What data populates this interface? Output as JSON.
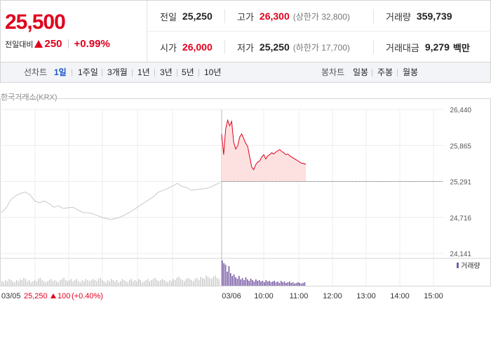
{
  "summary": {
    "price": "25,500",
    "change_label": "전일대비",
    "change_value": "250",
    "change_pct": "+0.99%",
    "prev_close_label": "전일",
    "prev_close": "25,250",
    "high_label": "고가",
    "high": "26,300",
    "upper_limit": "(상한가 32,800)",
    "volume_label": "거래량",
    "volume": "359,739",
    "open_label": "시가",
    "open": "26,000",
    "low_label": "저가",
    "low": "25,250",
    "lower_limit": "(하한가 17,700)",
    "amount_label": "거래대금",
    "amount": "9,279",
    "amount_unit": "백만"
  },
  "toolbar": {
    "line_label": "선차트",
    "line_periods": [
      "1일",
      "1주일",
      "3개월",
      "1년",
      "3년",
      "5년",
      "10년"
    ],
    "active_period": "1일",
    "candle_label": "봉차트",
    "candle_periods": [
      "일봉",
      "주봉",
      "월봉"
    ]
  },
  "exchange": "한국거래소(KRX)",
  "colors": {
    "up": "#e0001e",
    "volume": "#7b5ea7",
    "prev_session": "#c8c8c8",
    "fill": "#fde0e0"
  },
  "chart_data": {
    "type": "line",
    "y_ticks": [
      "26,440",
      "25,865",
      "25,291",
      "24,716",
      "24,141"
    ],
    "ylim": [
      24141,
      26440
    ],
    "reference_line": 25291,
    "x_ticks": [
      "03/06",
      "10:00",
      "11:00",
      "12:00",
      "13:00",
      "14:00",
      "15:00"
    ],
    "prev_session_label": "03/05",
    "prev_session_close": "25,250",
    "prev_session_change": "100",
    "prev_session_pct": "(+0.40%)",
    "volume_legend": "거래량",
    "series": [
      {
        "values": [
          24790,
          24870,
          25000,
          25060,
          25100,
          25120,
          25080,
          24980,
          24950,
          24980,
          24940,
          24880,
          24900,
          24860,
          24870,
          24880,
          24840,
          24800,
          24790,
          24780,
          24750,
          24720,
          24700,
          24680,
          24700,
          24720,
          24760,
          24800,
          24850,
          24900,
          24950,
          25000,
          25050,
          25120,
          25150,
          25180,
          25220,
          25260,
          25210,
          25190,
          25150,
          25160,
          25170,
          25180,
          25200,
          25240,
          25270
        ]
      },
      {
        "values": [
          26050,
          25720,
          26130,
          26270,
          26180,
          26250,
          25920,
          25810,
          25860,
          26000,
          26050,
          25980,
          25900,
          25850,
          25680,
          25520,
          25480,
          25560,
          25600,
          25620,
          25680,
          25720,
          25650,
          25700,
          25720,
          25750,
          25730,
          25760,
          25780,
          25800,
          25770,
          25750,
          25720,
          25730,
          25700,
          25680,
          25660,
          25640,
          25620,
          25600,
          25580,
          25580,
          25560
        ]
      }
    ],
    "volume": [
      4,
      3,
      5,
      4,
      6,
      5,
      4,
      3,
      5,
      4,
      6,
      5,
      7,
      6,
      4,
      5,
      3,
      4,
      5,
      4,
      6,
      7,
      5,
      4,
      3,
      4,
      5,
      6,
      4,
      5,
      4,
      3,
      5,
      6,
      7,
      5,
      4,
      5,
      6,
      4,
      5,
      6,
      4,
      3,
      5,
      4,
      6,
      5,
      4,
      5,
      6,
      5,
      4,
      6,
      7,
      5,
      4,
      3,
      5,
      4,
      6,
      5,
      4,
      5,
      3,
      4,
      6,
      5,
      4,
      3,
      5,
      6,
      4,
      5,
      4,
      6,
      5,
      3,
      4,
      5,
      6,
      4,
      5,
      6,
      7,
      5,
      4,
      5,
      6,
      5,
      4,
      3,
      5,
      4,
      6,
      5,
      7,
      8,
      6,
      5,
      4,
      6,
      7,
      6,
      5,
      4,
      6,
      7,
      5,
      8,
      7,
      6,
      9,
      8,
      7,
      6,
      8,
      9,
      7,
      6
    ],
    "volume_today": [
      36,
      32,
      30,
      20,
      28,
      18,
      14,
      16,
      12,
      10,
      14,
      9,
      11,
      8,
      12,
      9,
      7,
      10,
      8,
      6,
      9,
      7,
      8,
      6,
      7,
      5,
      8,
      6,
      7,
      5,
      6,
      7,
      5,
      6,
      4,
      7,
      5,
      6,
      4,
      5,
      6,
      4,
      5,
      3,
      4,
      5,
      4,
      3,
      4,
      5
    ]
  }
}
